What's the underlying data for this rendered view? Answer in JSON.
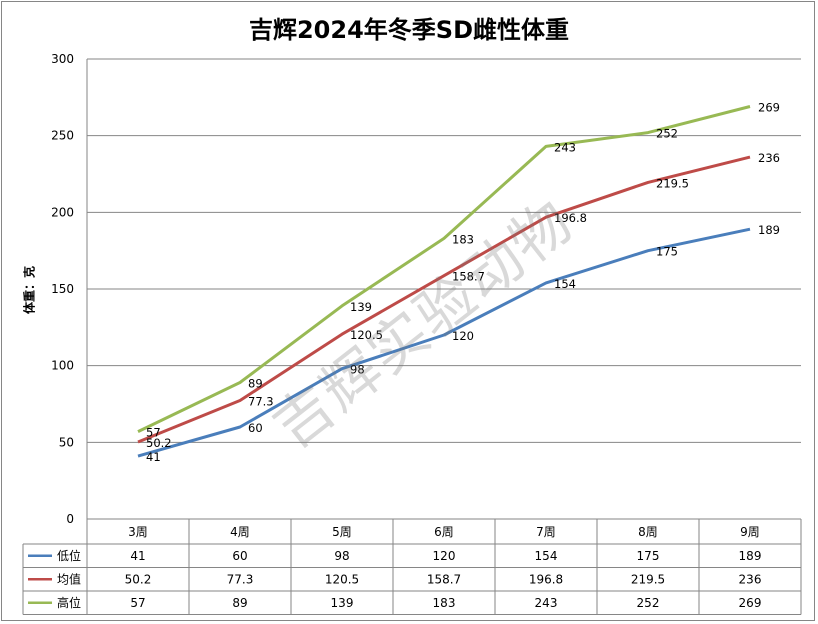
{
  "chart_data": {
    "type": "line",
    "title": "吉辉2024年冬季SD雌性体重",
    "ylabel": "体重：克",
    "xlabel": "",
    "categories": [
      "3周",
      "4周",
      "5周",
      "6周",
      "7周",
      "8周",
      "9周"
    ],
    "ylim": [
      0,
      300
    ],
    "yticks": [
      0,
      50,
      100,
      150,
      200,
      250,
      300
    ],
    "grid": true,
    "data_table": true,
    "series": [
      {
        "name": "低位",
        "color": "#4a7ebb",
        "values": [
          41,
          60,
          98,
          120,
          154,
          175,
          189
        ],
        "labels": [
          "41",
          "60",
          "98",
          "120",
          "154",
          "175",
          "189"
        ]
      },
      {
        "name": "均值",
        "color": "#be4b48",
        "values": [
          50.2,
          77.3,
          120.5,
          158.7,
          196.8,
          219.5,
          236
        ],
        "labels": [
          "50.2",
          "77.3",
          "120.5",
          "158.7",
          "196.8",
          "219.5",
          "236"
        ]
      },
      {
        "name": "高位",
        "color": "#98b954",
        "values": [
          57,
          89,
          139,
          183,
          243,
          252,
          269
        ],
        "labels": [
          "57",
          "89",
          "139",
          "183",
          "243",
          "252",
          "269"
        ]
      }
    ]
  },
  "watermark": "吉辉实验动物"
}
